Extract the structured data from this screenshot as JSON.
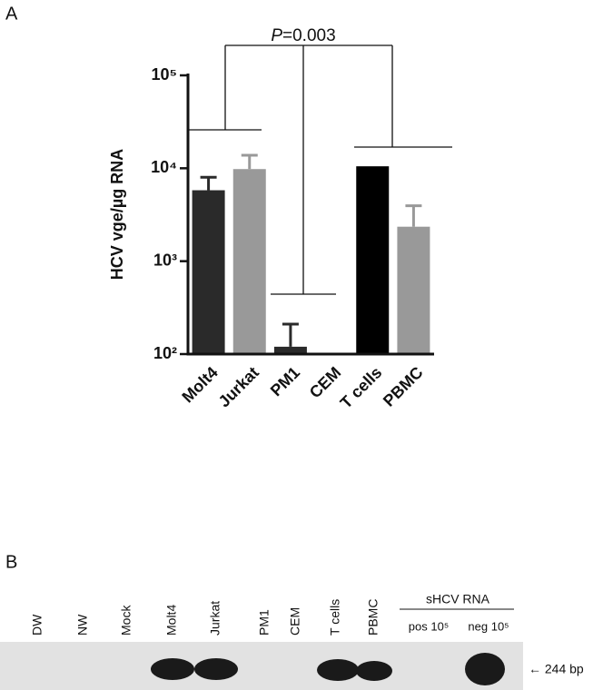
{
  "chart_data": {
    "type": "bar",
    "panel_label": "A",
    "ylabel": "HCV vge/µg RNA",
    "categories": [
      "Molt4",
      "Jurkat",
      "PM1",
      "CEM",
      "T cells",
      "PBMC"
    ],
    "values": [
      5800,
      9800,
      120,
      100,
      10500,
      2350
    ],
    "errors": [
      2200,
      4000,
      90,
      null,
      null,
      1600
    ],
    "colors": [
      "#2a2a2a",
      "#999999",
      "#2a2a2a",
      "#2a2a2a",
      "#000000",
      "#999999"
    ],
    "log_scale": true,
    "ylim": [
      100,
      100000
    ],
    "yticks": [
      {
        "value": 100,
        "label": "10²"
      },
      {
        "value": 1000,
        "label": "10³"
      },
      {
        "value": 10000,
        "label": "10⁴"
      },
      {
        "value": 100000,
        "label": "10⁵"
      }
    ],
    "annotation": {
      "italic": "P",
      "text": "=0.003"
    }
  },
  "gel": {
    "panel_label": "B",
    "lanes": [
      "DW",
      "NW",
      "Mock",
      "Molt4",
      "Jurkat",
      "PM1",
      "CEM",
      "T cells",
      "PBMC"
    ],
    "group_label": "sHCV RNA",
    "group_lanes": [
      "pos 10⁵",
      "neg 10⁵"
    ],
    "band_label": "← 244 bp"
  }
}
